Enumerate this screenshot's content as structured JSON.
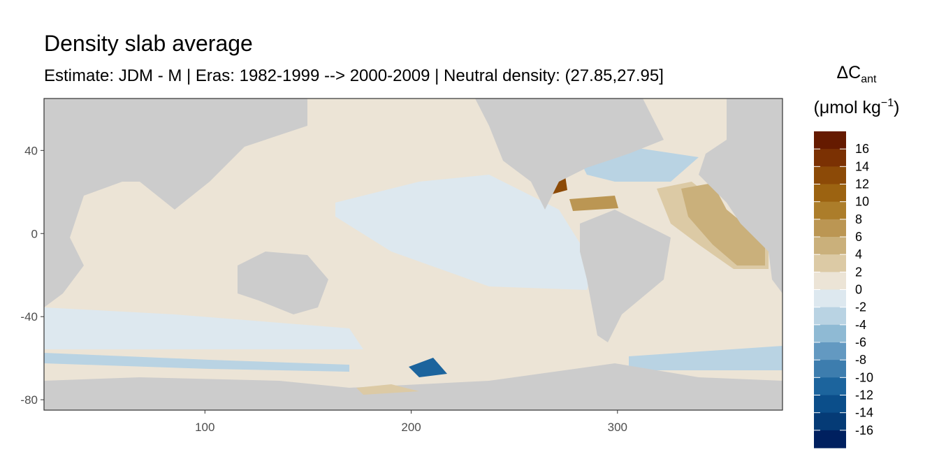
{
  "chart_data": {
    "type": "map",
    "title": "Density slab average",
    "subtitle": "Estimate: JDM - M | Eras: 1982-1999 --> 2000-2009 | Neutral density: (27.85,27.95]",
    "legend_title": {
      "main": "ΔC",
      "sub": "ant"
    },
    "legend_unit": {
      "main": "(μmol kg",
      "sup": "−1",
      "end": ")"
    },
    "xlim": [
      22,
      380
    ],
    "xticks": [
      100,
      200,
      300
    ],
    "ylim": [
      -85,
      65
    ],
    "yticks": [
      40,
      0,
      -40,
      -80
    ],
    "clim": [
      -18,
      18
    ],
    "legend_labels": [
      16,
      14,
      12,
      10,
      8,
      6,
      4,
      2,
      0,
      -2,
      -4,
      -6,
      -8,
      -10,
      -12,
      -14,
      -16
    ],
    "legend_colors": [
      "#651a00",
      "#7b3103",
      "#8c4a07",
      "#9c6311",
      "#ac7d2a",
      "#bb9653",
      "#cab07b",
      "#dccaa5",
      "#ece4d6",
      "#dde8ef",
      "#b9d3e3",
      "#8fbad4",
      "#6399c1",
      "#3d7dae",
      "#1c649d",
      "#0b4e8a",
      "#053b76",
      "#00205f"
    ]
  }
}
